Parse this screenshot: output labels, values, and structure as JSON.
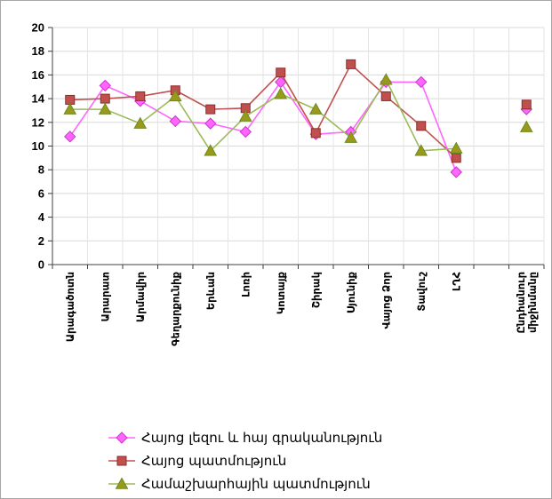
{
  "chart_data": {
    "type": "line",
    "title": "",
    "xlabel": "",
    "ylabel": "",
    "ylim": [
      0,
      20
    ],
    "yticks": [
      0,
      2,
      4,
      6,
      8,
      10,
      12,
      14,
      16,
      18,
      20
    ],
    "grid": true,
    "legend_position": "bottom",
    "categories": [
      "Արագածոտն",
      "Արարատ",
      "Արմավիր",
      "Գեղարքունիք",
      "Երևան",
      "Լոռի",
      "Կոտայք",
      "Շիրակ",
      "Սյունիք",
      "Վայոց Ձոր",
      "Տավուշ",
      "ԼՂՀ",
      "",
      "Ընդհանուր միջինմանը"
    ],
    "category_lines": [
      [
        "Արագածոտն"
      ],
      [
        "Արարատ"
      ],
      [
        "Արմավիր"
      ],
      [
        "Գեղարքունիք"
      ],
      [
        "Երևան"
      ],
      [
        "Լոռի"
      ],
      [
        "Կոտայք"
      ],
      [
        "Շիրակ"
      ],
      [
        "Սյունիք"
      ],
      [
        "Վայոց Ձոր"
      ],
      [
        "Տավուշ"
      ],
      [
        "ԼՂՀ"
      ],
      [],
      [
        "Ընդհանուր",
        "միջինմանը"
      ]
    ],
    "series": [
      {
        "name": "Հայոց լեզու և հայ  գրականություն",
        "color": "#ff66ff",
        "marker": "diamond",
        "values": [
          10.8,
          15.1,
          13.8,
          12.1,
          11.9,
          11.2,
          15.4,
          11.0,
          11.2,
          15.4,
          15.4,
          7.8,
          null,
          13.1
        ]
      },
      {
        "name": "Հայոց պատմություն",
        "color": "#c0504d",
        "marker": "square",
        "values": [
          13.9,
          14.0,
          14.2,
          14.7,
          13.1,
          13.2,
          16.2,
          11.1,
          16.9,
          14.2,
          11.7,
          9.0,
          null,
          13.5
        ]
      },
      {
        "name": "Համաշխարհային  պատմություն",
        "color": "#9bbb59",
        "marker": "triangle",
        "values": [
          13.1,
          13.1,
          11.9,
          14.2,
          9.6,
          12.5,
          14.4,
          13.1,
          10.7,
          15.6,
          9.6,
          9.8,
          null,
          11.6
        ]
      }
    ]
  },
  "colors": {
    "marker_outline_line1": "#cc33cc",
    "marker_outline_line2": "#8b2e2b",
    "marker_outline_line3": "#6b8a22",
    "triangle_fill": "#9a9a1a"
  }
}
